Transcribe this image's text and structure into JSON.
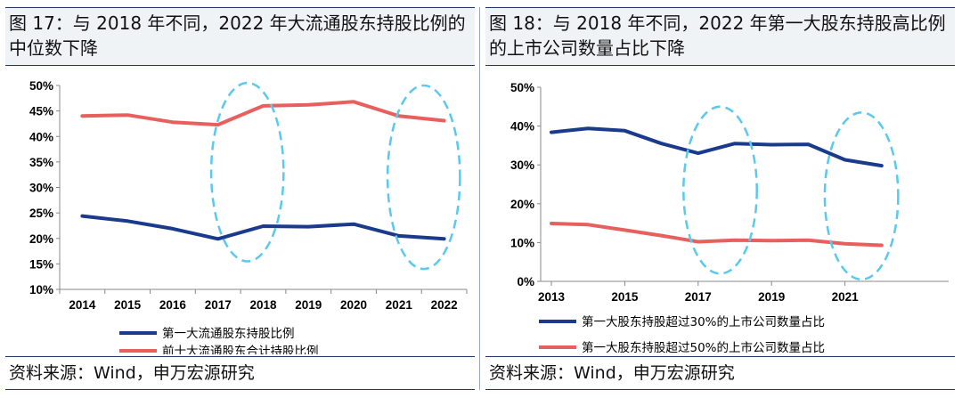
{
  "charts": [
    {
      "title": "图 17：与 2018 年不同，2022 年大流通股东持股比例的中位数下降",
      "source": "资料来源：Wind，申万宏源研究",
      "chart_data": {
        "type": "line",
        "x": [
          "2014",
          "2015",
          "2016",
          "2017",
          "2018",
          "2019",
          "2020",
          "2021",
          "2022"
        ],
        "x_ticks": [
          "2014",
          "2015",
          "2016",
          "2017",
          "2018",
          "2019",
          "2020",
          "2021",
          "2022"
        ],
        "y_ticks": [
          "10%",
          "15%",
          "20%",
          "25%",
          "30%",
          "35%",
          "40%",
          "45%",
          "50%"
        ],
        "ylim": [
          10,
          50
        ],
        "series": [
          {
            "name": "第一大流通股东持股比例",
            "color": "#1a3a8c",
            "values": [
              24.4,
              23.4,
              21.9,
              19.9,
              22.4,
              22.3,
              22.8,
              20.5,
              19.9
            ]
          },
          {
            "name": "前十大流通股东合计持股比例",
            "color": "#e8605e",
            "values": [
              44.0,
              44.2,
              42.8,
              42.3,
              46.0,
              46.2,
              46.8,
              44.0,
              43.1
            ]
          }
        ],
        "highlight_color": "#5bc8ee",
        "highlights": [
          {
            "x": 2017.65,
            "y": 33,
            "rx": 0.8,
            "ry": 17.5
          },
          {
            "x": 2021.55,
            "y": 32,
            "rx": 0.8,
            "ry": 18
          }
        ]
      }
    },
    {
      "title": "图 18：与 2018 年不同，2022 年第一大股东持股高比例的上市公司数量占比下降",
      "source": "资料来源：Wind，申万宏源研究",
      "chart_data": {
        "type": "line",
        "x": [
          2013,
          2014,
          2015,
          2016,
          2017,
          2018,
          2019,
          2020,
          2021,
          2022
        ],
        "x_ticks": [
          "2013",
          "2015",
          "2017",
          "2019",
          "2021"
        ],
        "y_ticks": [
          "0%",
          "10%",
          "20%",
          "30%",
          "40%",
          "50%"
        ],
        "ylim": [
          0,
          50
        ],
        "series": [
          {
            "name": "第一大股东持股超过30%的上市公司数量占比",
            "color": "#1a3a8c",
            "values": [
              38.4,
              39.4,
              38.8,
              35.5,
              33.0,
              35.5,
              35.2,
              35.3,
              31.3,
              29.8
            ]
          },
          {
            "name": "第一大股东持股超过50%的上市公司数量占比",
            "color": "#e8605e",
            "values": [
              14.9,
              14.6,
              13.2,
              11.8,
              10.2,
              10.6,
              10.5,
              10.6,
              9.7,
              9.3
            ]
          }
        ],
        "highlight_color": "#5bc8ee",
        "highlights": [
          {
            "x": 2017.6,
            "y": 23.5,
            "rx": 1.0,
            "ry": 21.5
          },
          {
            "x": 2021.45,
            "y": 22,
            "rx": 1.0,
            "ry": 21.5
          }
        ]
      }
    }
  ]
}
